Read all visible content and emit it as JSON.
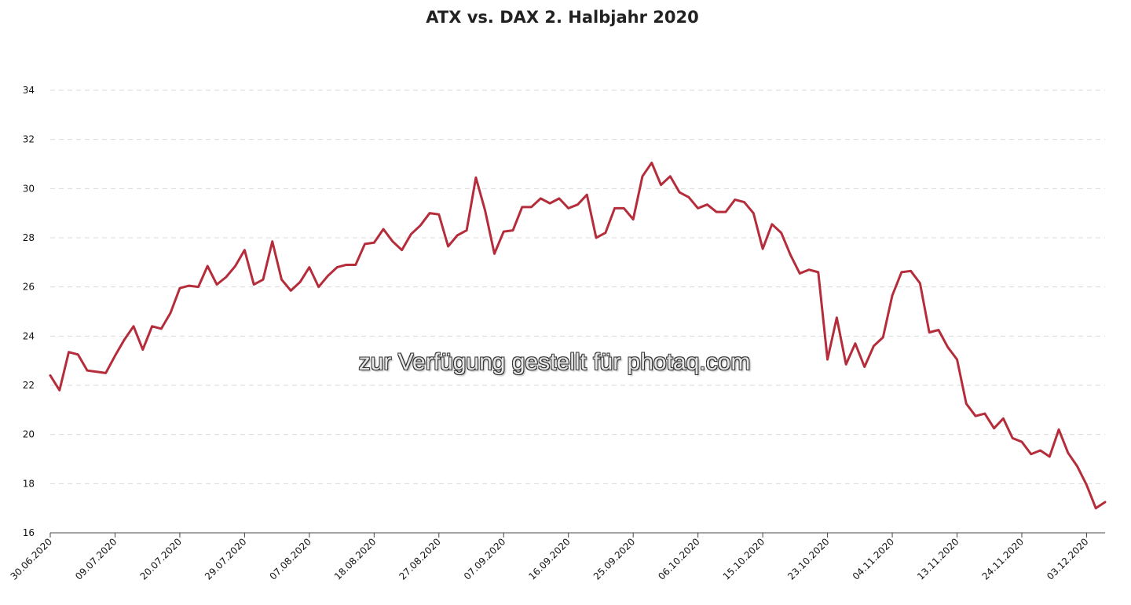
{
  "chart_data": {
    "type": "line",
    "title": "ATX vs. DAX 2. Halbjahr 2020",
    "xlabel": "",
    "ylabel": "",
    "ylim": [
      16,
      34
    ],
    "yticks": [
      16,
      18,
      20,
      22,
      24,
      26,
      28,
      30,
      32,
      34
    ],
    "grid": true,
    "x_tick_labels": [
      "30.06.2020",
      "09.07.2020",
      "20.07.2020",
      "29.07.2020",
      "07.08.2020",
      "18.08.2020",
      "27.08.2020",
      "07.09.2020",
      "16.09.2020",
      "25.09.2020",
      "06.10.2020",
      "15.10.2020",
      "23.10.2020",
      "04.11.2020",
      "13.11.2020",
      "24.11.2020",
      "03.12.2020"
    ],
    "x_tick_index": [
      0,
      7,
      14,
      21,
      28,
      35,
      42,
      49,
      56,
      63,
      70,
      77,
      84,
      91,
      98,
      105,
      112
    ],
    "series": [
      {
        "values": [
          22.4,
          21.8,
          23.35,
          23.25,
          22.6,
          22.55,
          22.5,
          23.2,
          23.85,
          24.4,
          23.45,
          24.4,
          24.3,
          24.95,
          25.95,
          26.05,
          26.0,
          26.85,
          26.1,
          26.4,
          26.85,
          27.5,
          26.1,
          26.3,
          27.85,
          26.3,
          25.85,
          26.2,
          26.8,
          26.0,
          26.45,
          26.8,
          26.9,
          26.9,
          27.75,
          27.8,
          28.35,
          27.85,
          27.5,
          28.15,
          28.5,
          29.0,
          28.95,
          27.65,
          28.1,
          28.3,
          30.45,
          29.1,
          27.35,
          28.25,
          28.3,
          29.25,
          29.25,
          29.6,
          29.4,
          29.6,
          29.2,
          29.35,
          29.75,
          28.0,
          28.2,
          29.2,
          29.2,
          28.75,
          30.5,
          31.05,
          30.15,
          30.5,
          29.85,
          29.65,
          29.2,
          29.35,
          29.05,
          29.05,
          29.55,
          29.45,
          29.0,
          27.55,
          28.55,
          28.2,
          27.3,
          26.55,
          26.7,
          26.6,
          23.05,
          24.75,
          22.85,
          23.7,
          22.75,
          23.6,
          23.95,
          25.65,
          26.6,
          26.65,
          26.15,
          24.15,
          24.25,
          23.55,
          23.05,
          21.25,
          20.75,
          20.85,
          20.25,
          20.65,
          19.85,
          19.7,
          19.2,
          19.35,
          19.1,
          20.2,
          19.25,
          18.7,
          17.95,
          17.0,
          17.25
        ],
        "color": "#b52c3b"
      }
    ]
  },
  "watermark": {
    "text": "zur Verfügung gestellt für photaq.com"
  }
}
